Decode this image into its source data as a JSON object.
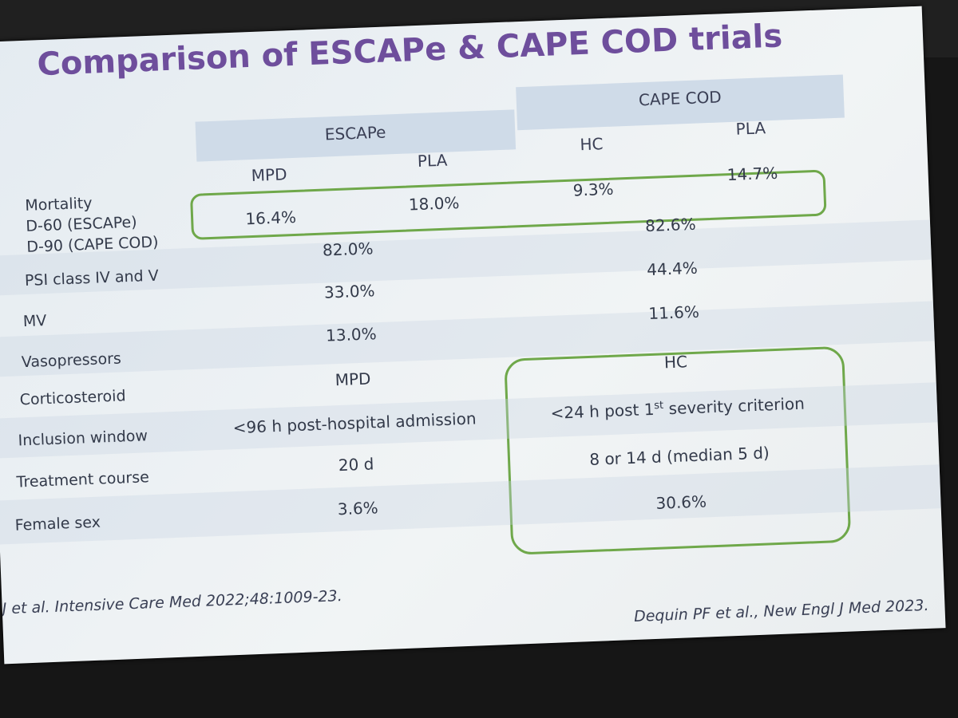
{
  "title": "Comparison of ESCAPe & CAPE COD trials",
  "table": {
    "groups": [
      "ESCAPe",
      "CAPE COD"
    ],
    "subheaders": [
      "MPD",
      "PLA",
      "HC",
      "PLA"
    ],
    "rows": [
      {
        "label": [
          "Mortality",
          "D-60 (ESCAPe)",
          "D-90 (CAPE COD)"
        ],
        "cells": [
          "16.4%",
          "18.0%",
          "9.3%",
          "14.7%"
        ]
      },
      {
        "label": [
          "PSI class IV and V"
        ],
        "cells": [
          "82.0%",
          "82.6%"
        ]
      },
      {
        "label": [
          "MV"
        ],
        "cells": [
          "33.0%",
          "44.4%"
        ]
      },
      {
        "label": [
          "Vasopressors"
        ],
        "cells": [
          "13.0%",
          "11.6%"
        ]
      },
      {
        "label": [
          "Corticosteroid"
        ],
        "cells": [
          "MPD",
          "HC"
        ]
      },
      {
        "label": [
          "Inclusion window"
        ],
        "cells": [
          "<96 h post-hospital admission",
          {
            "before": "<24 h post 1",
            "sup": "st",
            "after": " severity criterion"
          }
        ]
      },
      {
        "label": [
          "Treatment course"
        ],
        "cells": [
          "20 d",
          "8 or 14 d (median 5 d)"
        ]
      },
      {
        "label": [
          "Female sex"
        ],
        "cells": [
          "3.6%",
          "30.6%"
        ]
      }
    ]
  },
  "references": [
    "J et al. Intensive Care Med 2022;48:1009-23.",
    "Dequin PF et al., New Engl J Med  2023."
  ]
}
